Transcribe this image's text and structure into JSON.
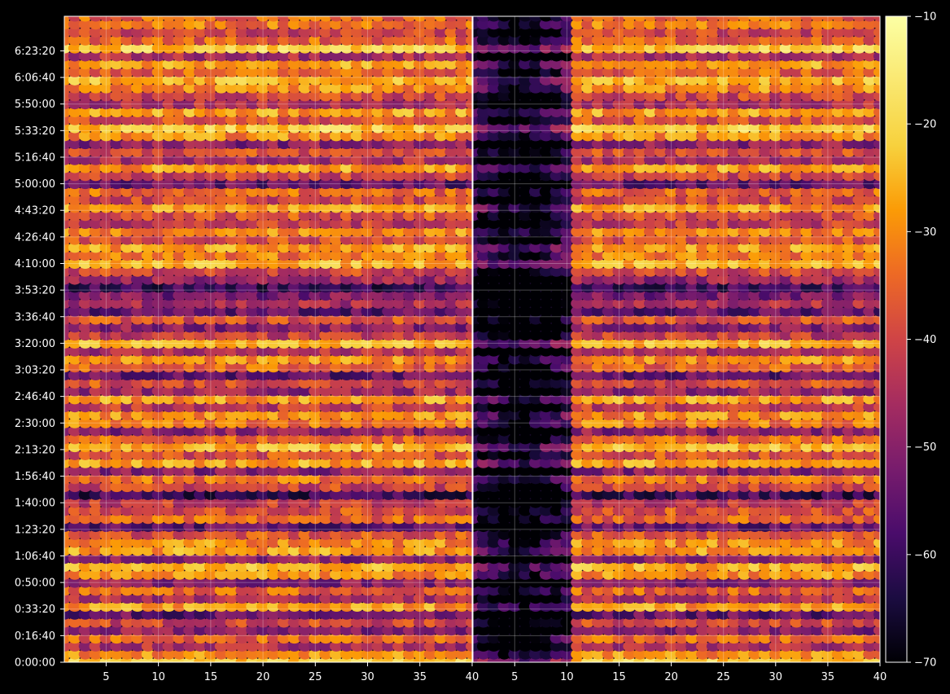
{
  "chart_data": {
    "type": "heatmap",
    "title": "",
    "xlabel": "",
    "ylabel": "",
    "colormap": "inferno",
    "background": "#000000",
    "grid": true,
    "panels": [
      {
        "name": "",
        "xlim": [
          1,
          40
        ],
        "x_ticks": [
          5,
          10,
          15,
          20,
          25,
          30,
          35,
          40
        ]
      },
      {
        "name": "",
        "xlim": [
          1,
          40
        ],
        "x_ticks": [
          5,
          10,
          15,
          20,
          25,
          30,
          35,
          40
        ]
      }
    ],
    "y_axis": {
      "unit": "seconds",
      "range": [
        0,
        24300
      ],
      "ticks": [
        0,
        1000,
        2000,
        3000,
        4000,
        5000,
        6000,
        7000,
        8000,
        9000,
        10000,
        11000,
        12000,
        13000,
        14000,
        15000,
        16000,
        17000,
        18000,
        19000,
        20000,
        21000,
        22000,
        23000
      ],
      "tick_labels": [
        "0:00:00",
        "0:16:40",
        "0:33:20",
        "0:50:00",
        "1:06:40",
        "1:23:20",
        "1:40:00",
        "1:56:40",
        "2:13:20",
        "2:30:00",
        "2:46:40",
        "3:03:20",
        "3:20:00",
        "3:36:40",
        "3:53:20",
        "4:10:00",
        "4:26:40",
        "4:43:20",
        "5:00:00",
        "5:16:40",
        "5:33:20",
        "5:50:00",
        "6:06:40",
        "6:23:20"
      ]
    },
    "colorbar": {
      "range": [
        -70,
        -10
      ],
      "ticks": [
        -70,
        -60,
        -50,
        -40,
        -30,
        -20,
        -10
      ],
      "tick_labels": [
        "−70",
        "−60",
        "−50",
        "−40",
        "−30",
        "−20",
        "−10"
      ]
    },
    "row_intensity": [
      {
        "t": 0,
        "v": -22
      },
      {
        "t": 300,
        "v": -30
      },
      {
        "t": 600,
        "v": -45
      },
      {
        "t": 900,
        "v": -35
      },
      {
        "t": 1200,
        "v": -50
      },
      {
        "t": 1500,
        "v": -40
      },
      {
        "t": 1800,
        "v": -55
      },
      {
        "t": 2100,
        "v": -28
      },
      {
        "t": 2400,
        "v": -45
      },
      {
        "t": 2700,
        "v": -35
      },
      {
        "t": 3000,
        "v": -50
      },
      {
        "t": 3300,
        "v": -30
      },
      {
        "t": 3600,
        "v": -25
      },
      {
        "t": 3900,
        "v": -50
      },
      {
        "t": 4200,
        "v": -28
      },
      {
        "t": 4500,
        "v": -30
      },
      {
        "t": 4800,
        "v": -38
      },
      {
        "t": 5100,
        "v": -55
      },
      {
        "t": 5400,
        "v": -35
      },
      {
        "t": 5700,
        "v": -38
      },
      {
        "t": 6000,
        "v": -42
      },
      {
        "t": 6300,
        "v": -60
      },
      {
        "t": 6600,
        "v": -40
      },
      {
        "t": 6900,
        "v": -33
      },
      {
        "t": 7200,
        "v": -50
      },
      {
        "t": 7500,
        "v": -27
      },
      {
        "t": 7800,
        "v": -38
      },
      {
        "t": 8100,
        "v": -25
      },
      {
        "t": 8400,
        "v": -35
      },
      {
        "t": 8700,
        "v": -50
      },
      {
        "t": 9000,
        "v": -32
      },
      {
        "t": 9300,
        "v": -30
      },
      {
        "t": 9600,
        "v": -42
      },
      {
        "t": 9900,
        "v": -28
      },
      {
        "t": 10200,
        "v": -48
      },
      {
        "t": 10500,
        "v": -38
      },
      {
        "t": 10800,
        "v": -55
      },
      {
        "t": 11100,
        "v": -35
      },
      {
        "t": 11400,
        "v": -30
      },
      {
        "t": 11700,
        "v": -45
      },
      {
        "t": 12000,
        "v": -25
      },
      {
        "t": 12300,
        "v": -42
      },
      {
        "t": 12600,
        "v": -50
      },
      {
        "t": 12900,
        "v": -38
      },
      {
        "t": 13200,
        "v": -55
      },
      {
        "t": 13500,
        "v": -45
      },
      {
        "t": 13800,
        "v": -52
      },
      {
        "t": 14100,
        "v": -60
      },
      {
        "t": 14400,
        "v": -48
      },
      {
        "t": 14700,
        "v": -40
      },
      {
        "t": 15000,
        "v": -25
      },
      {
        "t": 15300,
        "v": -32
      },
      {
        "t": 15600,
        "v": -28
      },
      {
        "t": 15900,
        "v": -38
      },
      {
        "t": 16200,
        "v": -30
      },
      {
        "t": 16500,
        "v": -42
      },
      {
        "t": 16800,
        "v": -38
      },
      {
        "t": 17100,
        "v": -28
      },
      {
        "t": 17400,
        "v": -40
      },
      {
        "t": 17700,
        "v": -35
      },
      {
        "t": 18000,
        "v": -55
      },
      {
        "t": 18300,
        "v": -40
      },
      {
        "t": 18600,
        "v": -28
      },
      {
        "t": 18900,
        "v": -45
      },
      {
        "t": 19200,
        "v": -38
      },
      {
        "t": 19500,
        "v": -50
      },
      {
        "t": 19800,
        "v": -30
      },
      {
        "t": 20100,
        "v": -22
      },
      {
        "t": 20400,
        "v": -38
      },
      {
        "t": 20700,
        "v": -28
      },
      {
        "t": 21000,
        "v": -45
      },
      {
        "t": 21300,
        "v": -40
      },
      {
        "t": 21600,
        "v": -30
      },
      {
        "t": 21900,
        "v": -25
      },
      {
        "t": 22200,
        "v": -35
      },
      {
        "t": 22500,
        "v": -28
      },
      {
        "t": 22800,
        "v": -45
      },
      {
        "t": 23100,
        "v": -22
      },
      {
        "t": 23400,
        "v": -35
      },
      {
        "t": 23700,
        "v": -40
      },
      {
        "t": 24000,
        "v": -32
      },
      {
        "t": 24300,
        "v": -35
      }
    ],
    "right_panel_dark_columns": [
      1,
      10
    ]
  }
}
